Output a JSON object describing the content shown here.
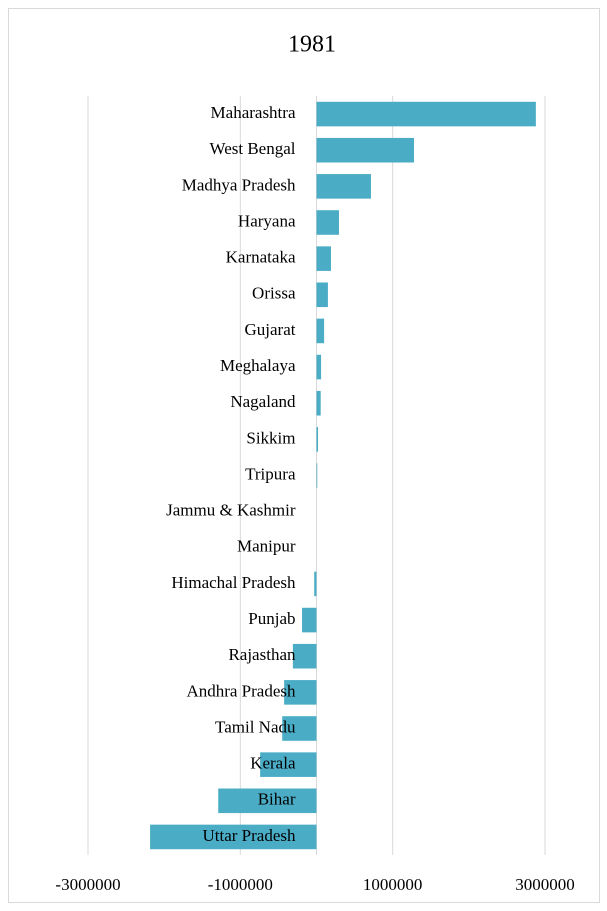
{
  "chart_data": {
    "type": "hbar",
    "title": "1981",
    "categories": [
      "Maharashtra",
      "West Bengal",
      "Madhya Pradesh",
      "Haryana",
      "Karnataka",
      "Orissa",
      "Gujarat",
      "Meghalaya",
      "Nagaland",
      "Sikkim",
      "Tripura",
      "Jammu & Kashmir",
      "Manipur",
      "Himachal Pradesh",
      "Punjab",
      "Rajasthan",
      "Andhra Pradesh",
      "Tamil Nadu",
      "Kerala",
      "Bihar",
      "Uttar Pradesh"
    ],
    "values": [
      2880000,
      1280000,
      715000,
      295000,
      190000,
      150000,
      100000,
      60000,
      55000,
      20000,
      10000,
      0,
      0,
      -30000,
      -190000,
      -310000,
      -425000,
      -450000,
      -740000,
      -1290000,
      -2185000
    ],
    "color": "#4bacc6",
    "xlim": [
      -3000000,
      3000000
    ],
    "xticks": [
      -3000000,
      -1000000,
      1000000,
      3000000
    ],
    "grid": true
  }
}
